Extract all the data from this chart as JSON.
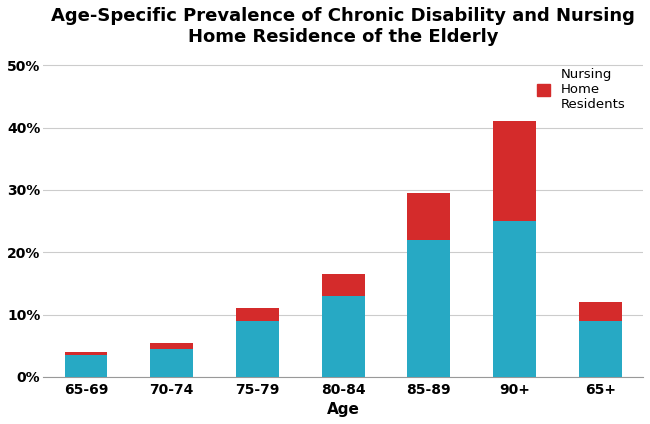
{
  "title": "Age-Specific Prevalence of Chronic Disability and Nursing\nHome Residence of the Elderly",
  "categories": [
    "65-69",
    "70-74",
    "75-79",
    "80-84",
    "85-89",
    "90+",
    "65+"
  ],
  "teal_values": [
    3.5,
    4.5,
    9.0,
    13.0,
    22.0,
    25.0,
    9.0
  ],
  "red_values": [
    0.5,
    1.0,
    2.0,
    3.5,
    7.5,
    16.0,
    3.0
  ],
  "teal_color": "#27A9C4",
  "red_color": "#D42B2B",
  "xlabel": "Age",
  "yticks": [
    0,
    10,
    20,
    30,
    40,
    50
  ],
  "ylim": [
    0,
    52
  ],
  "legend_label": "Nursing\nHome\nResidents",
  "background_color": "#ffffff",
  "title_fontsize": 13,
  "tick_fontsize": 10,
  "label_fontsize": 11,
  "bar_width": 0.5
}
